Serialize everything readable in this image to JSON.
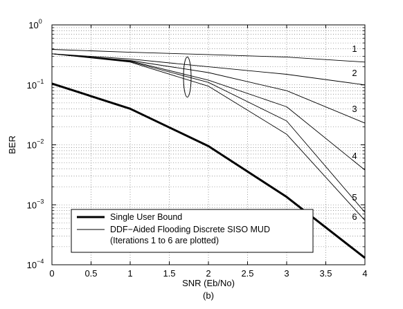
{
  "chart_data": {
    "type": "line",
    "xlabel": "SNR (Eb/No)",
    "ylabel": "BER",
    "caption": "(b)",
    "xlim": [
      0,
      4
    ],
    "ylim": [
      0.0001,
      1
    ],
    "y_scale": "log",
    "grid": true,
    "x_ticks": [
      "0",
      "0.5",
      "1",
      "1.5",
      "2",
      "2.5",
      "3",
      "3.5",
      "4"
    ],
    "y_ticks": [
      {
        "base": "10",
        "exp": "0"
      },
      {
        "base": "10",
        "exp": "−1"
      },
      {
        "base": "10",
        "exp": "−2"
      },
      {
        "base": "10",
        "exp": "−3"
      },
      {
        "base": "10",
        "exp": "−4"
      }
    ],
    "series": [
      {
        "name": "Single User Bound",
        "style": "bold",
        "x": [
          0,
          1,
          2,
          3,
          4
        ],
        "y": [
          0.105,
          0.04,
          0.0095,
          0.00135,
          0.00013
        ]
      },
      {
        "label": "1",
        "style": "thin",
        "x": [
          0,
          1,
          2,
          3,
          4
        ],
        "y": [
          0.39,
          0.35,
          0.32,
          0.29,
          0.24
        ]
      },
      {
        "label": "2",
        "style": "thin",
        "x": [
          0,
          1,
          2,
          3,
          4
        ],
        "y": [
          0.33,
          0.27,
          0.2,
          0.15,
          0.1
        ]
      },
      {
        "label": "3",
        "style": "thin",
        "x": [
          0,
          1,
          2,
          3,
          4
        ],
        "y": [
          0.33,
          0.255,
          0.16,
          0.08,
          0.023
        ]
      },
      {
        "label": "4",
        "style": "thin",
        "x": [
          0,
          1,
          2,
          3,
          4
        ],
        "y": [
          0.33,
          0.25,
          0.12,
          0.043,
          0.0038
        ]
      },
      {
        "label": "5",
        "style": "thin",
        "x": [
          0,
          1,
          2,
          3,
          4
        ],
        "y": [
          0.33,
          0.245,
          0.11,
          0.025,
          0.00075
        ]
      },
      {
        "label": "6",
        "style": "thin",
        "x": [
          0,
          1,
          2,
          3,
          4
        ],
        "y": [
          0.33,
          0.24,
          0.095,
          0.015,
          0.00055
        ]
      }
    ],
    "legend": {
      "placement": "bottom-left",
      "entries": [
        {
          "style": "bold",
          "lines": [
            "Single User Bound"
          ]
        },
        {
          "style": "thin",
          "lines": [
            "DDF−Aided Flooding Discrete SISO MUD",
            "(Iterations 1 to 6 are plotted)"
          ]
        }
      ]
    },
    "annotation": {
      "type": "ellipse",
      "x": 1.73,
      "y": 0.135
    }
  }
}
